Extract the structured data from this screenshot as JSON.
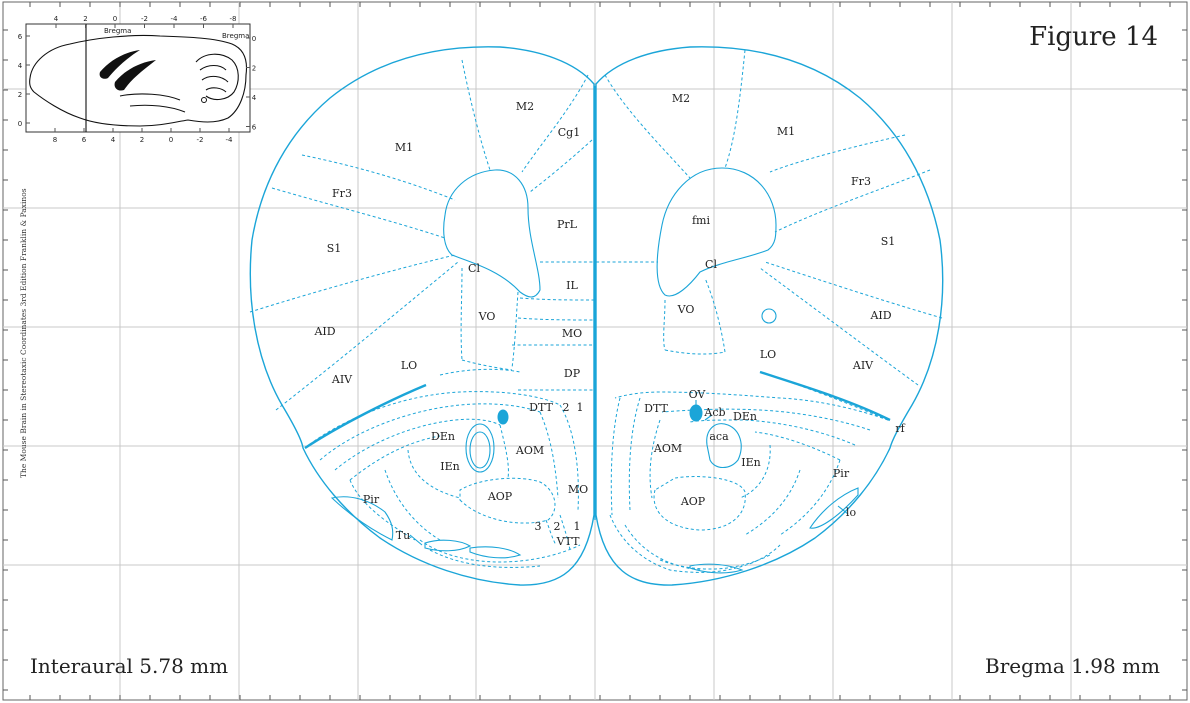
{
  "figure": {
    "title": "Figure 14",
    "interaural": "Interaural 5.78 mm",
    "bregma": "Bregma 1.98 mm",
    "side_credit": "The Mouse Brain in Stereotaxic Coordinates 3rd Edition  Franklin & Paxinos"
  },
  "inset": {
    "top_ticks": [
      "4",
      "2",
      "0",
      "-2",
      "-4",
      "-6",
      "-8"
    ],
    "bottom_ticks": [
      "8",
      "6",
      "4",
      "2",
      "0",
      "-2",
      "-4"
    ],
    "left_ticks": [
      "6",
      "4",
      "2",
      "0"
    ],
    "right_ticks": [
      "0",
      "2",
      "4",
      "6"
    ],
    "bregma_label_top": "Bregma",
    "bregma_label_right": "Bregma"
  },
  "regions_left": [
    {
      "id": "m2-left",
      "text": "M2"
    },
    {
      "id": "cg1-left",
      "text": "Cg1"
    },
    {
      "id": "m1-left",
      "text": "M1"
    },
    {
      "id": "fr3-left",
      "text": "Fr3"
    },
    {
      "id": "prl-left",
      "text": "PrL"
    },
    {
      "id": "s1-left",
      "text": "S1"
    },
    {
      "id": "cl-left",
      "text": "Cl"
    },
    {
      "id": "il-left",
      "text": "IL"
    },
    {
      "id": "vo-left",
      "text": "VO"
    },
    {
      "id": "aid-left",
      "text": "AID"
    },
    {
      "id": "mo-left",
      "text": "MO"
    },
    {
      "id": "lo-left",
      "text": "LO"
    },
    {
      "id": "aiv-left",
      "text": "AIV"
    },
    {
      "id": "dp-left",
      "text": "DP"
    },
    {
      "id": "dtt-left",
      "text": "DTT"
    },
    {
      "id": "dtt2-left",
      "text": "2"
    },
    {
      "id": "dtt1-left",
      "text": "1"
    },
    {
      "id": "den-left",
      "text": "DEn"
    },
    {
      "id": "aom-left",
      "text": "AOM"
    },
    {
      "id": "ien-left",
      "text": "IEn"
    },
    {
      "id": "mo2-left",
      "text": "MO"
    },
    {
      "id": "aop-left",
      "text": "AOP"
    },
    {
      "id": "pir-left",
      "text": "Pir"
    },
    {
      "id": "tu-left",
      "text": "Tu"
    },
    {
      "id": "vtt3-left",
      "text": "3"
    },
    {
      "id": "vtt2-left",
      "text": "2"
    },
    {
      "id": "vtt1-left",
      "text": "1"
    },
    {
      "id": "vtt-left",
      "text": "VTT"
    }
  ],
  "regions_right": [
    {
      "id": "m2-right",
      "text": "M2"
    },
    {
      "id": "m1-right",
      "text": "M1"
    },
    {
      "id": "fr3-right",
      "text": "Fr3"
    },
    {
      "id": "fmi-right",
      "text": "fmi"
    },
    {
      "id": "s1-right",
      "text": "S1"
    },
    {
      "id": "cl-right",
      "text": "Cl"
    },
    {
      "id": "vo-right",
      "text": "VO"
    },
    {
      "id": "aid-right",
      "text": "AID"
    },
    {
      "id": "lo-right",
      "text": "LO"
    },
    {
      "id": "aiv-right",
      "text": "AIV"
    },
    {
      "id": "ov-right",
      "text": "OV"
    },
    {
      "id": "dtt-right",
      "text": "DTT"
    },
    {
      "id": "acb-right",
      "text": "Acb"
    },
    {
      "id": "den-right",
      "text": "DEn"
    },
    {
      "id": "rf-right",
      "text": "rf"
    },
    {
      "id": "aca-right",
      "text": "aca"
    },
    {
      "id": "aom-right",
      "text": "AOM"
    },
    {
      "id": "ien-right",
      "text": "IEn"
    },
    {
      "id": "pir-right",
      "text": "Pir"
    },
    {
      "id": "aop-right",
      "text": "AOP"
    },
    {
      "id": "lo2-right",
      "text": "lo"
    }
  ],
  "colors": {
    "atlas_line": "#1ba5d8",
    "grid": "#c9c9c9",
    "text": "#222222"
  }
}
